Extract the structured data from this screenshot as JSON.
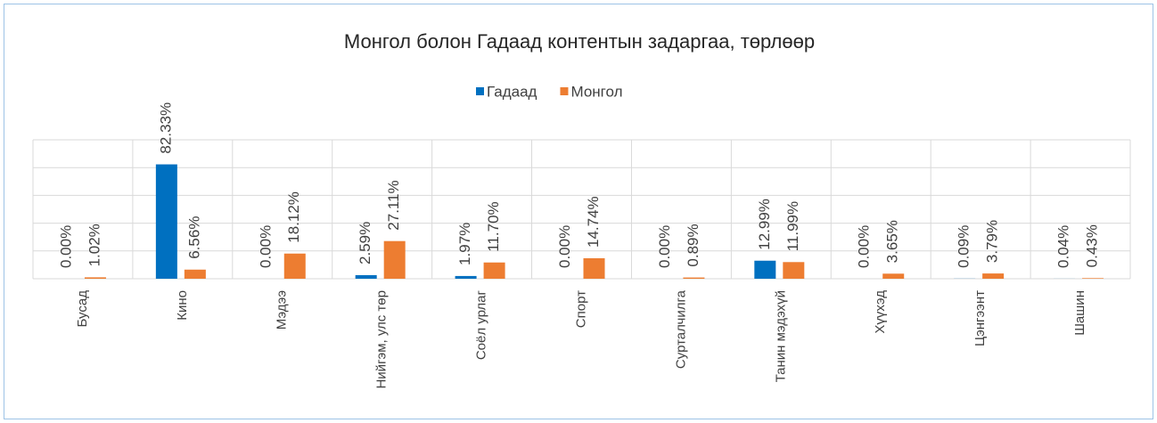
{
  "chart_data": {
    "type": "bar",
    "title": "Монгол болон Гадаад контентын задаргаа, төрлөөр",
    "categories": [
      "Бусад",
      "Кино",
      "Мэдээ",
      "Нийгэм, улс төр",
      "Соёл урлаг",
      "Спорт",
      "Сурталчилга",
      "Танин мэдэхүй",
      "Хүүхэд",
      "Цэнгээнт",
      "Шашин"
    ],
    "series": [
      {
        "name": "Гадаад",
        "color": "#0070c0",
        "values": [
          0.0,
          82.33,
          0.0,
          2.59,
          1.97,
          0.0,
          0.0,
          12.99,
          0.0,
          0.09,
          0.04
        ],
        "value_labels": [
          "0.00%",
          "82.33%",
          "0.00%",
          "2.59%",
          "1.97%",
          "0.00%",
          "0.00%",
          "12.99%",
          "0.00%",
          "0.09%",
          "0.04%"
        ]
      },
      {
        "name": "Монгол",
        "color": "#ed7d31",
        "values": [
          1.02,
          6.56,
          18.12,
          27.11,
          11.7,
          14.74,
          0.89,
          11.99,
          3.65,
          3.79,
          0.43
        ],
        "value_labels": [
          "1.02%",
          "6.56%",
          "18.12%",
          "27.11%",
          "11.70%",
          "14.74%",
          "0.89%",
          "11.99%",
          "3.65%",
          "3.79%",
          "0.43%"
        ]
      }
    ],
    "ylim": [
      0,
      100
    ],
    "yticks": [
      0,
      20,
      40,
      60,
      80,
      100
    ],
    "grid": true,
    "legend": "top"
  }
}
